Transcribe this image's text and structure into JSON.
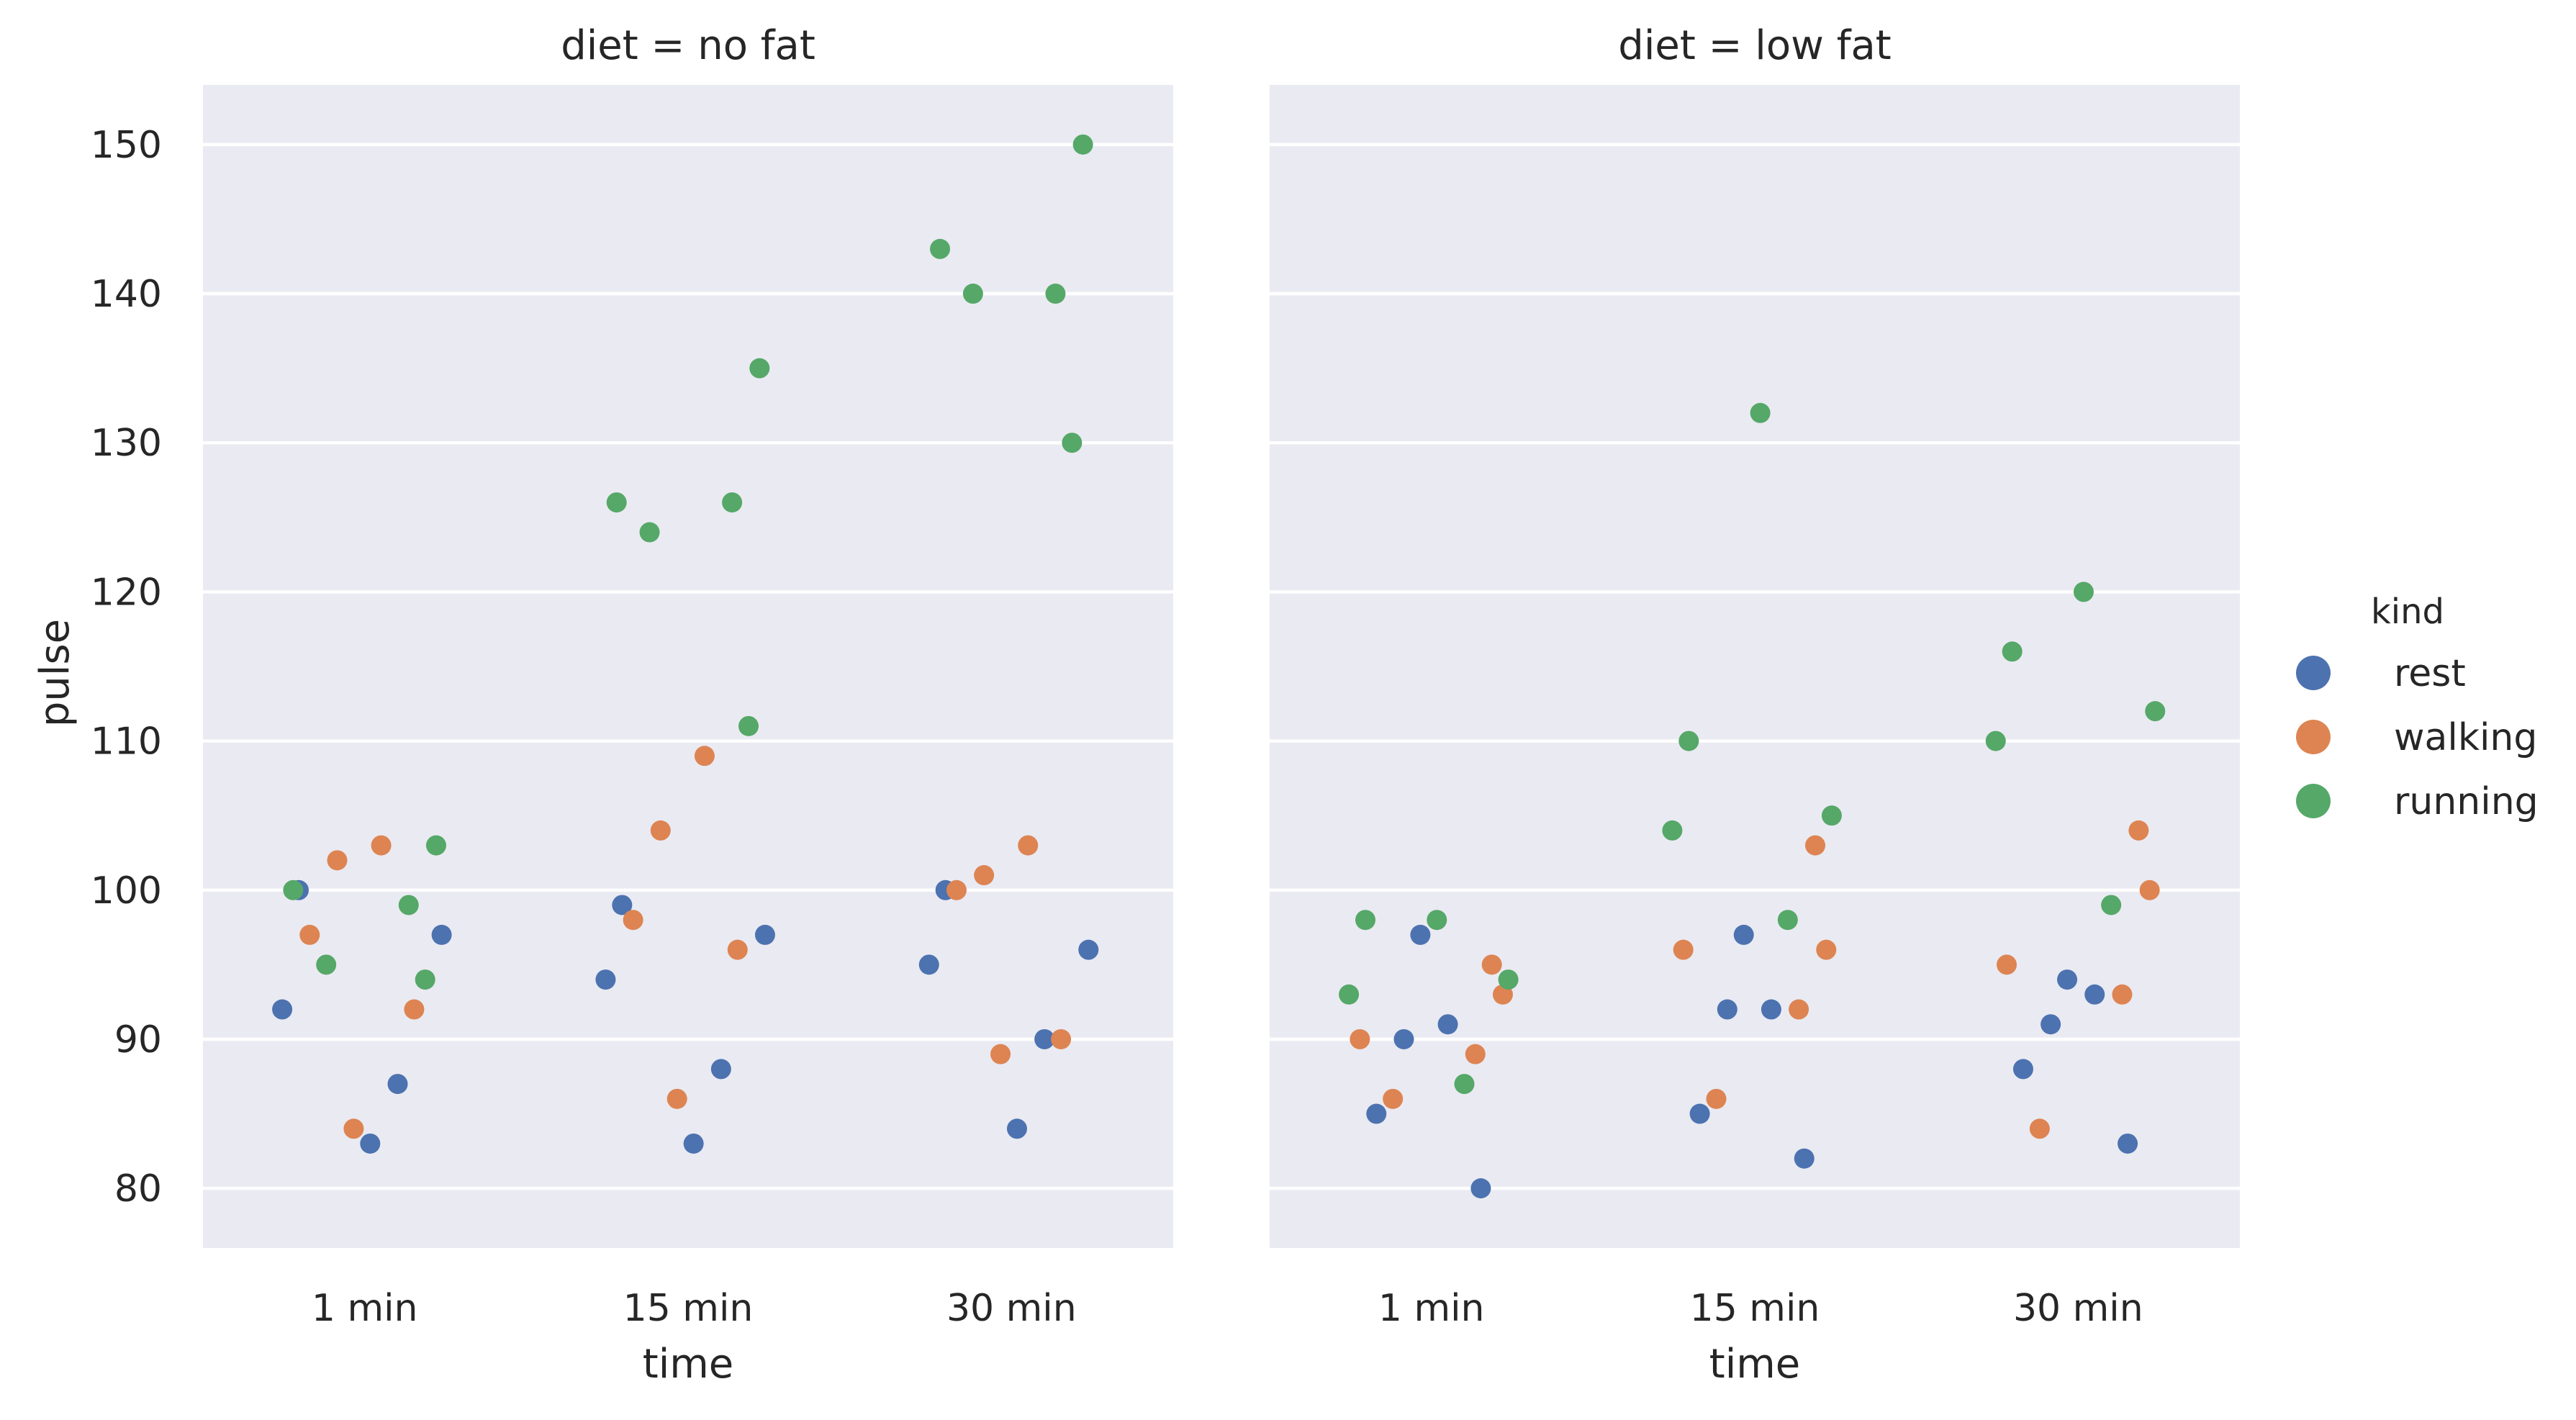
{
  "chart_data": {
    "type": "scatter",
    "plot_kind": "categorical strip plot (jittered)",
    "x": [
      "1 min",
      "15 min",
      "30 min"
    ],
    "xlabel": "time",
    "ylabel": "pulse",
    "ylim": [
      76,
      154
    ],
    "yticks": [
      80,
      90,
      100,
      110,
      120,
      130,
      140,
      150
    ],
    "grid": true,
    "legend": {
      "title": "kind",
      "placement": "right, outside",
      "entries": [
        {
          "name": "rest",
          "color": "#4c72b0"
        },
        {
          "name": "walking",
          "color": "#dd8452"
        },
        {
          "name": "running",
          "color": "#55a868"
        }
      ]
    },
    "panels": [
      {
        "title": "diet = no fat",
        "series": [
          {
            "name": "rest",
            "points": [
              {
                "x": "1 min",
                "y": 100
              },
              {
                "x": "1 min",
                "y": 97
              },
              {
                "x": "1 min",
                "y": 92
              },
              {
                "x": "1 min",
                "y": 87
              },
              {
                "x": "1 min",
                "y": 83
              },
              {
                "x": "15 min",
                "y": 99
              },
              {
                "x": "15 min",
                "y": 97
              },
              {
                "x": "15 min",
                "y": 94
              },
              {
                "x": "15 min",
                "y": 88
              },
              {
                "x": "15 min",
                "y": 83
              },
              {
                "x": "30 min",
                "y": 100
              },
              {
                "x": "30 min",
                "y": 96
              },
              {
                "x": "30 min",
                "y": 95
              },
              {
                "x": "30 min",
                "y": 90
              },
              {
                "x": "30 min",
                "y": 84
              }
            ]
          },
          {
            "name": "walking",
            "points": [
              {
                "x": "1 min",
                "y": 103
              },
              {
                "x": "1 min",
                "y": 102
              },
              {
                "x": "1 min",
                "y": 97
              },
              {
                "x": "1 min",
                "y": 92
              },
              {
                "x": "1 min",
                "y": 84
              },
              {
                "x": "15 min",
                "y": 109
              },
              {
                "x": "15 min",
                "y": 104
              },
              {
                "x": "15 min",
                "y": 98
              },
              {
                "x": "15 min",
                "y": 96
              },
              {
                "x": "15 min",
                "y": 86
              },
              {
                "x": "30 min",
                "y": 103
              },
              {
                "x": "30 min",
                "y": 101
              },
              {
                "x": "30 min",
                "y": 100
              },
              {
                "x": "30 min",
                "y": 90
              },
              {
                "x": "30 min",
                "y": 89
              }
            ]
          },
          {
            "name": "running",
            "points": [
              {
                "x": "1 min",
                "y": 103
              },
              {
                "x": "1 min",
                "y": 100
              },
              {
                "x": "1 min",
                "y": 99
              },
              {
                "x": "1 min",
                "y": 95
              },
              {
                "x": "1 min",
                "y": 94
              },
              {
                "x": "15 min",
                "y": 135
              },
              {
                "x": "15 min",
                "y": 126
              },
              {
                "x": "15 min",
                "y": 126
              },
              {
                "x": "15 min",
                "y": 124
              },
              {
                "x": "15 min",
                "y": 111
              },
              {
                "x": "30 min",
                "y": 150
              },
              {
                "x": "30 min",
                "y": 143
              },
              {
                "x": "30 min",
                "y": 140
              },
              {
                "x": "30 min",
                "y": 140
              },
              {
                "x": "30 min",
                "y": 130
              }
            ]
          }
        ]
      },
      {
        "title": "diet = low fat",
        "series": [
          {
            "name": "rest",
            "points": [
              {
                "x": "1 min",
                "y": 97
              },
              {
                "x": "1 min",
                "y": 91
              },
              {
                "x": "1 min",
                "y": 90
              },
              {
                "x": "1 min",
                "y": 85
              },
              {
                "x": "1 min",
                "y": 80
              },
              {
                "x": "15 min",
                "y": 97
              },
              {
                "x": "15 min",
                "y": 92
              },
              {
                "x": "15 min",
                "y": 92
              },
              {
                "x": "15 min",
                "y": 85
              },
              {
                "x": "15 min",
                "y": 82
              },
              {
                "x": "30 min",
                "y": 94
              },
              {
                "x": "30 min",
                "y": 93
              },
              {
                "x": "30 min",
                "y": 91
              },
              {
                "x": "30 min",
                "y": 88
              },
              {
                "x": "30 min",
                "y": 83
              }
            ]
          },
          {
            "name": "walking",
            "points": [
              {
                "x": "1 min",
                "y": 95
              },
              {
                "x": "1 min",
                "y": 93
              },
              {
                "x": "1 min",
                "y": 90
              },
              {
                "x": "1 min",
                "y": 89
              },
              {
                "x": "1 min",
                "y": 86
              },
              {
                "x": "15 min",
                "y": 103
              },
              {
                "x": "15 min",
                "y": 96
              },
              {
                "x": "15 min",
                "y": 96
              },
              {
                "x": "15 min",
                "y": 92
              },
              {
                "x": "15 min",
                "y": 86
              },
              {
                "x": "30 min",
                "y": 104
              },
              {
                "x": "30 min",
                "y": 100
              },
              {
                "x": "30 min",
                "y": 95
              },
              {
                "x": "30 min",
                "y": 93
              },
              {
                "x": "30 min",
                "y": 84
              }
            ]
          },
          {
            "name": "running",
            "points": [
              {
                "x": "1 min",
                "y": 98
              },
              {
                "x": "1 min",
                "y": 98
              },
              {
                "x": "1 min",
                "y": 94
              },
              {
                "x": "1 min",
                "y": 93
              },
              {
                "x": "1 min",
                "y": 87
              },
              {
                "x": "15 min",
                "y": 132
              },
              {
                "x": "15 min",
                "y": 110
              },
              {
                "x": "15 min",
                "y": 105
              },
              {
                "x": "15 min",
                "y": 104
              },
              {
                "x": "15 min",
                "y": 98
              },
              {
                "x": "30 min",
                "y": 120
              },
              {
                "x": "30 min",
                "y": 116
              },
              {
                "x": "30 min",
                "y": 112
              },
              {
                "x": "30 min",
                "y": 110
              },
              {
                "x": "30 min",
                "y": 99
              }
            ]
          }
        ]
      }
    ]
  }
}
